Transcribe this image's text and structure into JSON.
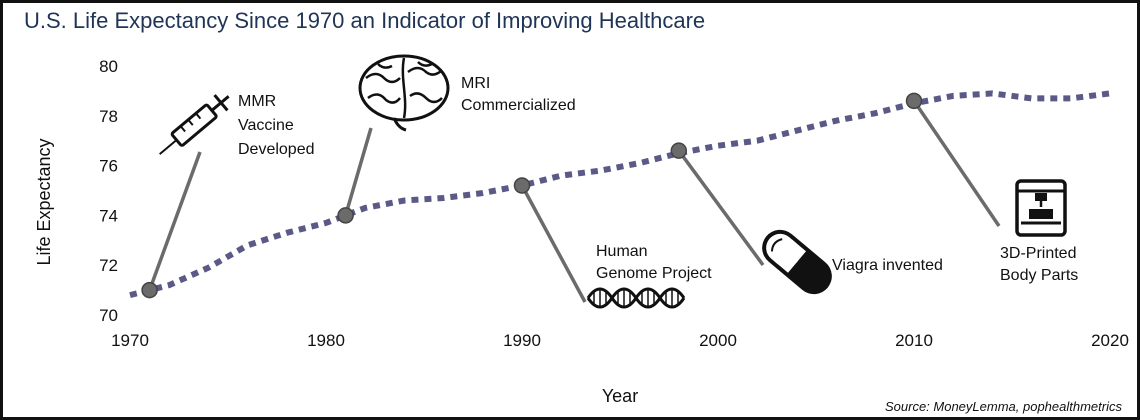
{
  "title": "U.S. Life Expectancy Since 1970 an Indicator of Improving Healthcare",
  "source": "Source: MoneyLemma, pophealthmetrics",
  "chart_data": {
    "type": "line",
    "title": "U.S. Life Expectancy Since 1970 an Indicator of Improving Healthcare",
    "xlabel": "Year",
    "ylabel": "Life Expectancy",
    "xlim": [
      1970,
      2020
    ],
    "ylim": [
      70,
      80
    ],
    "x_ticks": [
      1970,
      1980,
      1990,
      2000,
      2010,
      2020
    ],
    "y_ticks": [
      70,
      72,
      74,
      76,
      78,
      80
    ],
    "grid": false,
    "line_color": "#5b5a86",
    "line_style": "dotted",
    "series": [
      {
        "x": [
          1970,
          1971,
          1972,
          1974,
          1976,
          1978,
          1980,
          1981,
          1982,
          1984,
          1986,
          1988,
          1990,
          1992,
          1994,
          1996,
          1998,
          2000,
          2002,
          2004,
          2006,
          2008,
          2010,
          2012,
          2014,
          2016,
          2018,
          2020
        ],
        "y": [
          70.8,
          71.0,
          71.2,
          71.9,
          72.8,
          73.3,
          73.7,
          74.0,
          74.3,
          74.6,
          74.7,
          74.9,
          75.2,
          75.6,
          75.8,
          76.1,
          76.5,
          76.8,
          77.0,
          77.4,
          77.8,
          78.1,
          78.5,
          78.8,
          78.9,
          78.7,
          78.7,
          78.9
        ]
      }
    ],
    "annotations": [
      {
        "label": [
          "MMR",
          "Vaccine",
          "Developed"
        ],
        "x": 1971,
        "y": 71.0,
        "icon": "syringe-icon"
      },
      {
        "label": [
          "MRI",
          "Commercialized"
        ],
        "x": 1981,
        "y": 74.0,
        "icon": "brain-icon"
      },
      {
        "label": [
          "Human",
          "Genome Project"
        ],
        "x": 1990,
        "y": 75.2,
        "icon": "dna-icon"
      },
      {
        "label": [
          "Viagra invented"
        ],
        "x": 1998,
        "y": 76.6,
        "icon": "pill-icon"
      },
      {
        "label": [
          "3D-Printed",
          "Body Parts"
        ],
        "x": 2010,
        "y": 78.6,
        "icon": "printer-icon"
      }
    ]
  }
}
